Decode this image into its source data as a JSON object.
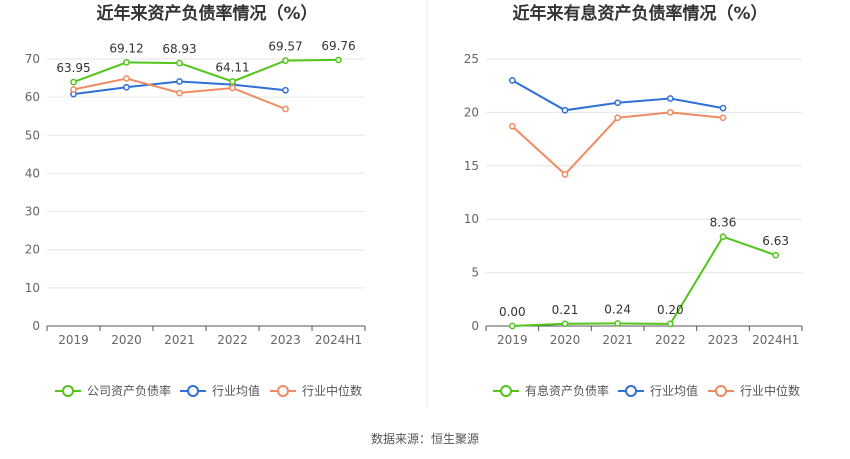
{
  "colors": {
    "green": "#52c41a",
    "blue": "#2f6fd6",
    "orange": "#ef8b62",
    "grid": "#e6e6e6",
    "divider": "#e8e8e8"
  },
  "source": "数据来源：恒生聚源",
  "chart_data": [
    {
      "type": "line",
      "title": "近年来资产负债率情况（%）",
      "categories": [
        "2019",
        "2020",
        "2021",
        "2022",
        "2023",
        "2024H1"
      ],
      "ylim": [
        0,
        70
      ],
      "yticks": [
        0,
        10,
        20,
        30,
        40,
        50,
        60,
        70
      ],
      "grid": true,
      "legend_position": "bottom",
      "series": [
        {
          "name": "公司资产负债率",
          "color": "#52c41a",
          "labels": true,
          "values": [
            63.95,
            69.12,
            68.93,
            64.11,
            69.57,
            69.76
          ]
        },
        {
          "name": "行业均值",
          "color": "#2f6fd6",
          "labels": false,
          "values": [
            60.8,
            62.6,
            64.1,
            63.3,
            61.8,
            null
          ]
        },
        {
          "name": "行业中位数",
          "color": "#ef8b62",
          "labels": false,
          "values": [
            62.0,
            64.9,
            61.1,
            62.4,
            56.9,
            null
          ]
        }
      ]
    },
    {
      "type": "line",
      "title": "近年来有息资产负债率情况（%）",
      "categories": [
        "2019",
        "2020",
        "2021",
        "2022",
        "2023",
        "2024H1"
      ],
      "ylim": [
        0,
        25
      ],
      "yticks": [
        0,
        5,
        10,
        15,
        20,
        25
      ],
      "grid": true,
      "legend_position": "bottom",
      "series": [
        {
          "name": "有息资产负债率",
          "color": "#52c41a",
          "labels": true,
          "values": [
            0.0,
            0.21,
            0.24,
            0.2,
            8.36,
            6.63
          ]
        },
        {
          "name": "行业均值",
          "color": "#2f6fd6",
          "labels": false,
          "values": [
            23.0,
            20.2,
            20.9,
            21.3,
            20.4,
            null
          ]
        },
        {
          "name": "行业中位数",
          "color": "#ef8b62",
          "labels": false,
          "values": [
            18.7,
            14.2,
            19.5,
            20.0,
            19.5,
            null
          ]
        }
      ]
    }
  ]
}
